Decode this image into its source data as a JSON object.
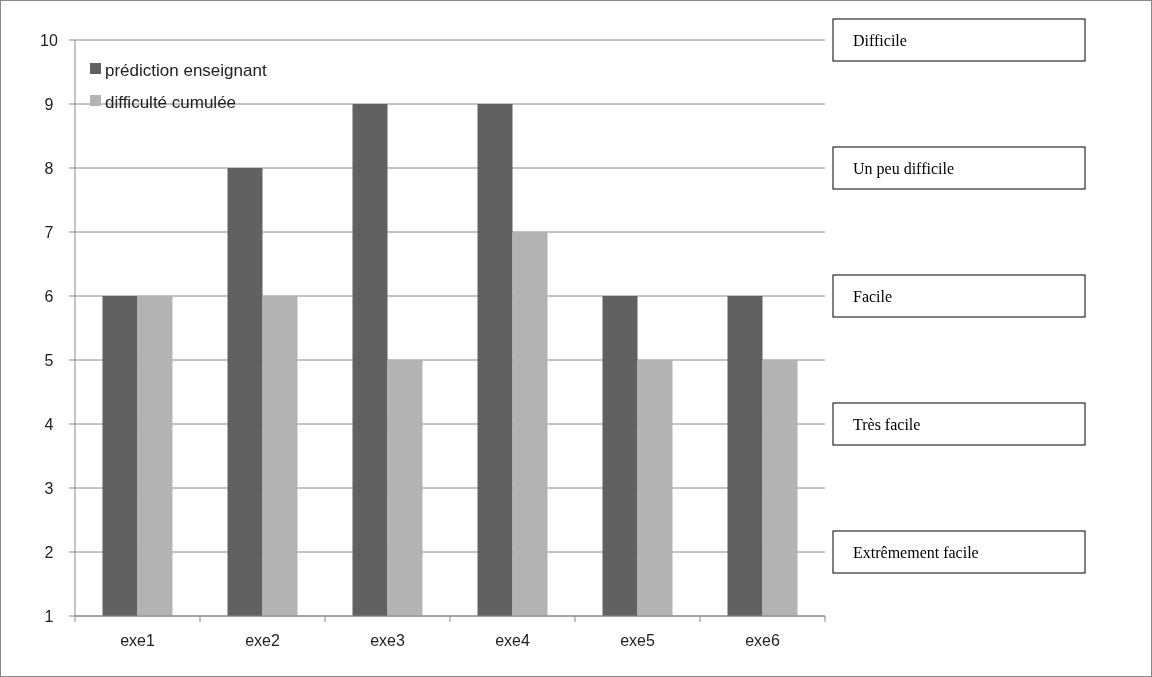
{
  "chart_data": {
    "type": "bar",
    "categories": [
      "exe1",
      "exe2",
      "exe3",
      "exe4",
      "exe5",
      "exe6"
    ],
    "series": [
      {
        "name": "prédiction enseignant",
        "color": "#616161",
        "values": [
          6,
          8,
          9,
          9,
          6,
          6
        ]
      },
      {
        "name": "difficulté cumulée",
        "color": "#b3b3b3",
        "values": [
          6,
          6,
          5,
          7,
          5,
          5
        ]
      }
    ],
    "ylim": [
      1,
      10
    ],
    "yticks": [
      1,
      2,
      3,
      4,
      5,
      6,
      7,
      8,
      9,
      10
    ],
    "grid": "y",
    "legend": "top left",
    "annotations": [
      "Difficile",
      "Un peu difficile",
      "Facile",
      "Très facile",
      "Extrêmement facile"
    ]
  }
}
